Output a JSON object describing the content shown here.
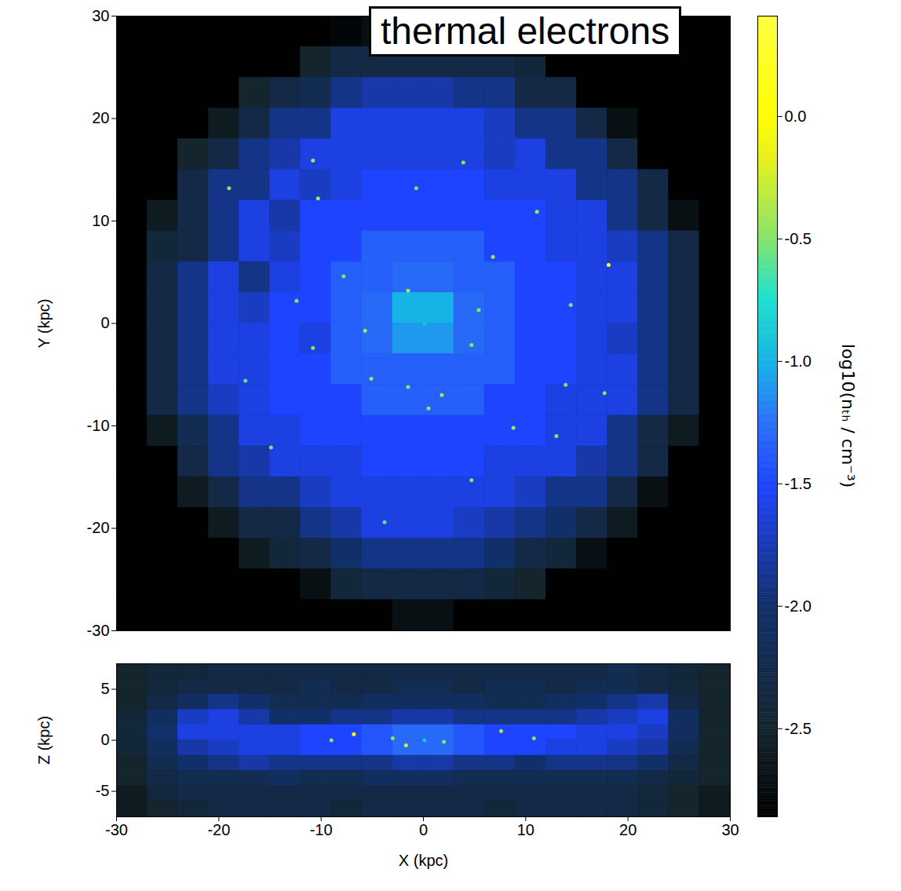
{
  "chart_data": {
    "type": "heatmap",
    "annotation": "thermal electrons",
    "xlabel": "X (kpc)",
    "xlim": [
      -30,
      30
    ],
    "xticks": [
      -30,
      -20,
      -10,
      0,
      10,
      20,
      30
    ],
    "panels": [
      {
        "ylabel": "Y (kpc)",
        "ylim": [
          -30,
          30
        ],
        "yticks": [
          -30,
          -20,
          -10,
          0,
          10,
          20,
          30
        ],
        "tick_labels": "y",
        "x_edges": [
          -30,
          -27,
          -24,
          -21,
          -18,
          -15,
          -12,
          -9,
          -6,
          -3,
          0,
          3,
          6,
          9,
          12,
          15,
          18,
          21,
          24,
          27,
          30
        ],
        "y_edges": [
          30,
          27,
          24,
          21,
          18,
          15,
          12,
          9,
          6,
          3,
          0,
          -3,
          -6,
          -9,
          -12,
          -15,
          -18,
          -21,
          -24,
          -27,
          -30
        ],
        "cells": [
          [
            -2.85,
            -2.85,
            -2.85,
            -2.85,
            -2.85,
            -2.85,
            -2.85,
            -2.8,
            -2.7,
            -2.6,
            -2.6,
            -2.7,
            -2.8,
            -2.85,
            -2.85,
            -2.85,
            -2.85,
            -2.85,
            -2.85,
            -2.85
          ],
          [
            -2.85,
            -2.85,
            -2.85,
            -2.85,
            -2.85,
            -2.85,
            -2.5,
            -2.3,
            -2.3,
            -2.3,
            -2.3,
            -2.3,
            -2.3,
            -2.4,
            -2.85,
            -2.85,
            -2.85,
            -2.85,
            -2.85,
            -2.85
          ],
          [
            -2.85,
            -2.85,
            -2.85,
            -2.85,
            -2.5,
            -2.3,
            -2.2,
            -1.9,
            -1.8,
            -1.8,
            -1.8,
            -1.9,
            -1.9,
            -2.3,
            -2.3,
            -2.85,
            -2.85,
            -2.85,
            -2.85,
            -2.85
          ],
          [
            -2.85,
            -2.85,
            -2.85,
            -2.6,
            -2.3,
            -1.9,
            -1.9,
            -1.6,
            -1.6,
            -1.6,
            -1.6,
            -1.6,
            -1.7,
            -1.9,
            -1.9,
            -2.3,
            -2.7,
            -2.85,
            -2.85,
            -2.85
          ],
          [
            -2.85,
            -2.85,
            -2.5,
            -2.3,
            -1.9,
            -1.8,
            -1.6,
            -1.6,
            -1.6,
            -1.6,
            -1.6,
            -1.6,
            -1.7,
            -1.6,
            -1.9,
            -1.9,
            -2.3,
            -2.85,
            -2.85,
            -2.85
          ],
          [
            -2.85,
            -2.85,
            -2.3,
            -1.9,
            -1.9,
            -1.6,
            -1.7,
            -1.6,
            -1.5,
            -1.5,
            -1.5,
            -1.5,
            -1.6,
            -1.6,
            -1.6,
            -1.9,
            -1.9,
            -2.3,
            -2.85,
            -2.85
          ],
          [
            -2.85,
            -2.6,
            -2.3,
            -1.9,
            -1.6,
            -1.8,
            -1.5,
            -1.5,
            -1.5,
            -1.5,
            -1.5,
            -1.5,
            -1.5,
            -1.5,
            -1.6,
            -1.6,
            -1.9,
            -2.3,
            -2.7,
            -2.85
          ],
          [
            -2.85,
            -2.4,
            -2.3,
            -1.9,
            -1.6,
            -1.7,
            -1.5,
            -1.5,
            -1.35,
            -1.35,
            -1.35,
            -1.35,
            -1.5,
            -1.5,
            -1.6,
            -1.6,
            -1.7,
            -1.9,
            -2.3,
            -2.85
          ],
          [
            -2.85,
            -2.3,
            -1.9,
            -1.6,
            -1.9,
            -1.6,
            -1.5,
            -1.35,
            -1.35,
            -1.3,
            -1.3,
            -1.35,
            -1.35,
            -1.5,
            -1.5,
            -1.6,
            -1.6,
            -1.9,
            -2.3,
            -2.85
          ],
          [
            -2.85,
            -2.3,
            -1.9,
            -1.6,
            -1.7,
            -1.5,
            -1.5,
            -1.35,
            -1.3,
            -1.0,
            -1.0,
            -1.3,
            -1.35,
            -1.5,
            -1.5,
            -1.6,
            -1.6,
            -1.9,
            -2.3,
            -2.85
          ],
          [
            -2.85,
            -2.3,
            -1.9,
            -1.6,
            -1.6,
            -1.5,
            -1.6,
            -1.35,
            -1.3,
            -1.1,
            -1.1,
            -1.3,
            -1.35,
            -1.5,
            -1.5,
            -1.6,
            -1.7,
            -1.9,
            -2.3,
            -2.85
          ],
          [
            -2.85,
            -2.3,
            -1.9,
            -1.6,
            -1.6,
            -1.5,
            -1.5,
            -1.35,
            -1.35,
            -1.35,
            -1.35,
            -1.35,
            -1.35,
            -1.5,
            -1.5,
            -1.6,
            -1.6,
            -1.9,
            -2.3,
            -2.85
          ],
          [
            -2.85,
            -2.3,
            -1.9,
            -1.7,
            -1.6,
            -1.5,
            -1.5,
            -1.5,
            -1.35,
            -1.35,
            -1.35,
            -1.35,
            -1.5,
            -1.5,
            -1.6,
            -1.6,
            -1.6,
            -1.9,
            -2.3,
            -2.85
          ],
          [
            -2.85,
            -2.6,
            -2.2,
            -1.9,
            -1.6,
            -1.6,
            -1.5,
            -1.5,
            -1.5,
            -1.5,
            -1.5,
            -1.5,
            -1.5,
            -1.5,
            -1.6,
            -1.6,
            -1.9,
            -2.3,
            -2.6,
            -2.85
          ],
          [
            -2.85,
            -2.85,
            -2.3,
            -1.9,
            -1.8,
            -1.6,
            -1.6,
            -1.6,
            -1.5,
            -1.5,
            -1.5,
            -1.5,
            -1.6,
            -1.6,
            -1.6,
            -1.8,
            -1.9,
            -2.3,
            -2.85,
            -2.85
          ],
          [
            -2.85,
            -2.85,
            -2.6,
            -2.3,
            -1.9,
            -1.9,
            -1.7,
            -1.6,
            -1.6,
            -1.6,
            -1.6,
            -1.6,
            -1.6,
            -1.7,
            -1.9,
            -1.9,
            -2.3,
            -2.7,
            -2.85,
            -2.85
          ],
          [
            -2.85,
            -2.85,
            -2.85,
            -2.6,
            -2.3,
            -2.3,
            -1.9,
            -1.8,
            -1.6,
            -1.6,
            -1.6,
            -1.7,
            -1.8,
            -1.9,
            -2.0,
            -2.3,
            -2.6,
            -2.85,
            -2.85,
            -2.85
          ],
          [
            -2.85,
            -2.85,
            -2.85,
            -2.85,
            -2.6,
            -2.4,
            -2.3,
            -2.0,
            -1.9,
            -1.9,
            -1.9,
            -1.9,
            -2.0,
            -2.3,
            -2.4,
            -2.7,
            -2.85,
            -2.85,
            -2.85,
            -2.85
          ],
          [
            -2.85,
            -2.85,
            -2.85,
            -2.85,
            -2.85,
            -2.85,
            -2.7,
            -2.4,
            -2.3,
            -2.3,
            -2.3,
            -2.3,
            -2.4,
            -2.5,
            -2.85,
            -2.85,
            -2.85,
            -2.85,
            -2.85,
            -2.85
          ],
          [
            -2.85,
            -2.85,
            -2.85,
            -2.85,
            -2.85,
            -2.85,
            -2.85,
            -2.85,
            -2.85,
            -2.7,
            -2.7,
            -2.85,
            -2.85,
            -2.85,
            -2.85,
            -2.85,
            -2.85,
            -2.85,
            -2.85,
            -2.85
          ]
        ],
        "points": {
          "x": [
            18.1,
            -10.3,
            -10.8,
            -19,
            -7.8,
            -5.7,
            -12.4,
            -5.1,
            1.8,
            0.5,
            -1.5,
            4.7,
            6.8,
            11.1,
            14.4,
            8.8,
            13,
            -14.9,
            -3.8,
            -0.7,
            3.9,
            13.9,
            -17.4,
            -1.5,
            5.4,
            0.1,
            4.7,
            17.7,
            -10.8
          ],
          "y": [
            5.7,
            12.2,
            15.9,
            13.2,
            4.6,
            -0.7,
            2.2,
            -5.4,
            -7,
            -8.3,
            -6.2,
            -2.1,
            6.5,
            10.9,
            1.8,
            -10.2,
            -11,
            -12.1,
            -19.4,
            13.2,
            15.7,
            -6,
            -5.6,
            3.2,
            1.3,
            0,
            -15.3,
            -6.8,
            -2.4
          ],
          "values": [
            0.0,
            -0.4,
            -0.4,
            -0.5,
            -0.5,
            -0.4,
            -0.5,
            -0.4,
            -0.4,
            -0.5,
            -0.5,
            -0.5,
            -0.4,
            -0.4,
            -0.5,
            -0.4,
            -0.5,
            -0.5,
            -0.6,
            -0.5,
            -0.5,
            -0.5,
            -0.6,
            -0.4,
            -0.5,
            -0.9,
            -0.5,
            -0.5,
            -0.5
          ]
        }
      },
      {
        "ylabel": "Z (kpc)",
        "ylim": [
          -7.5,
          7.5
        ],
        "yticks": [
          -5,
          0,
          5
        ],
        "x_edges": [
          -30,
          -27,
          -24,
          -21,
          -18,
          -15,
          -12,
          -9,
          -6,
          -3,
          0,
          3,
          6,
          9,
          12,
          15,
          18,
          21,
          24,
          27,
          30
        ],
        "y_edges": [
          7.5,
          6,
          4.5,
          3,
          1.5,
          0,
          -1.5,
          -3,
          -4.5,
          -6,
          -7.5
        ],
        "cells": [
          [
            -2.5,
            -2.4,
            -2.4,
            -2.3,
            -2.3,
            -2.3,
            -2.3,
            -2.3,
            -2.3,
            -2.3,
            -2.3,
            -2.3,
            -2.3,
            -2.3,
            -2.3,
            -2.3,
            -2.2,
            -2.3,
            -2.4,
            -2.5
          ],
          [
            -2.5,
            -2.4,
            -2.3,
            -2.3,
            -2.3,
            -2.3,
            -2.2,
            -2.3,
            -2.3,
            -2.2,
            -2.2,
            -2.3,
            -2.2,
            -2.2,
            -2.3,
            -2.2,
            -2.2,
            -2.3,
            -2.4,
            -2.5
          ],
          [
            -2.5,
            -2.3,
            -2.1,
            -1.9,
            -2.0,
            -2.2,
            -2.2,
            -2.2,
            -2.1,
            -2.1,
            -2.1,
            -2.1,
            -2.2,
            -2.2,
            -2.1,
            -2.0,
            -1.9,
            -1.8,
            -2.3,
            -2.5
          ],
          [
            -2.4,
            -2.1,
            -1.7,
            -1.6,
            -1.8,
            -2.0,
            -2.0,
            -1.9,
            -1.9,
            -1.8,
            -1.8,
            -1.9,
            -1.9,
            -1.9,
            -1.9,
            -1.8,
            -1.7,
            -1.6,
            -2.1,
            -2.5
          ],
          [
            -2.4,
            -2.0,
            -1.6,
            -1.6,
            -1.6,
            -1.6,
            -1.5,
            -1.5,
            -1.4,
            -1.3,
            -1.3,
            -1.4,
            -1.5,
            -1.5,
            -1.5,
            -1.6,
            -1.6,
            -1.7,
            -2.1,
            -2.5
          ],
          [
            -2.4,
            -2.1,
            -1.8,
            -1.7,
            -1.6,
            -1.6,
            -1.5,
            -1.5,
            -1.4,
            -1.3,
            -1.3,
            -1.4,
            -1.5,
            -1.5,
            -1.6,
            -1.6,
            -1.7,
            -1.8,
            -2.2,
            -2.5
          ],
          [
            -2.5,
            -2.2,
            -2.0,
            -1.9,
            -1.8,
            -1.9,
            -1.9,
            -1.9,
            -1.9,
            -1.8,
            -1.8,
            -1.9,
            -1.9,
            -2.0,
            -1.9,
            -1.9,
            -1.9,
            -2.0,
            -2.3,
            -2.5
          ],
          [
            -2.5,
            -2.3,
            -2.2,
            -2.2,
            -2.2,
            -2.1,
            -2.2,
            -2.2,
            -2.1,
            -2.1,
            -2.1,
            -2.2,
            -2.2,
            -2.2,
            -2.2,
            -2.2,
            -2.2,
            -2.3,
            -2.4,
            -2.5
          ],
          [
            -2.6,
            -2.4,
            -2.3,
            -2.3,
            -2.3,
            -2.3,
            -2.3,
            -2.3,
            -2.3,
            -2.3,
            -2.3,
            -2.3,
            -2.3,
            -2.3,
            -2.3,
            -2.3,
            -2.3,
            -2.4,
            -2.5,
            -2.6
          ],
          [
            -2.6,
            -2.5,
            -2.4,
            -2.3,
            -2.3,
            -2.3,
            -2.3,
            -2.4,
            -2.3,
            -2.3,
            -2.3,
            -2.3,
            -2.4,
            -2.3,
            -2.3,
            -2.3,
            -2.3,
            -2.4,
            -2.5,
            -2.6
          ]
        ],
        "points": {
          "x": [
            -6.8,
            0.1,
            -1.7,
            7.6,
            2,
            -3,
            -9,
            10.8
          ],
          "y": [
            0.6,
            0,
            -0.5,
            0.9,
            -0.15,
            0.2,
            0,
            0.2
          ],
          "values": [
            0.0,
            -0.9,
            -0.3,
            -0.4,
            -0.5,
            -0.5,
            -0.5,
            -0.5
          ]
        }
      }
    ],
    "colorbar": {
      "label": "log10(nₜₕ / cm⁻³)",
      "range": [
        -2.86,
        0.41
      ],
      "ticks": [
        {
          "value": 0,
          "label": "0.0"
        },
        -0.5,
        {
          "value": -1,
          "label": "-1.0"
        },
        -1.5,
        {
          "value": -2,
          "label": "-2.0"
        },
        -2.5
      ]
    }
  }
}
